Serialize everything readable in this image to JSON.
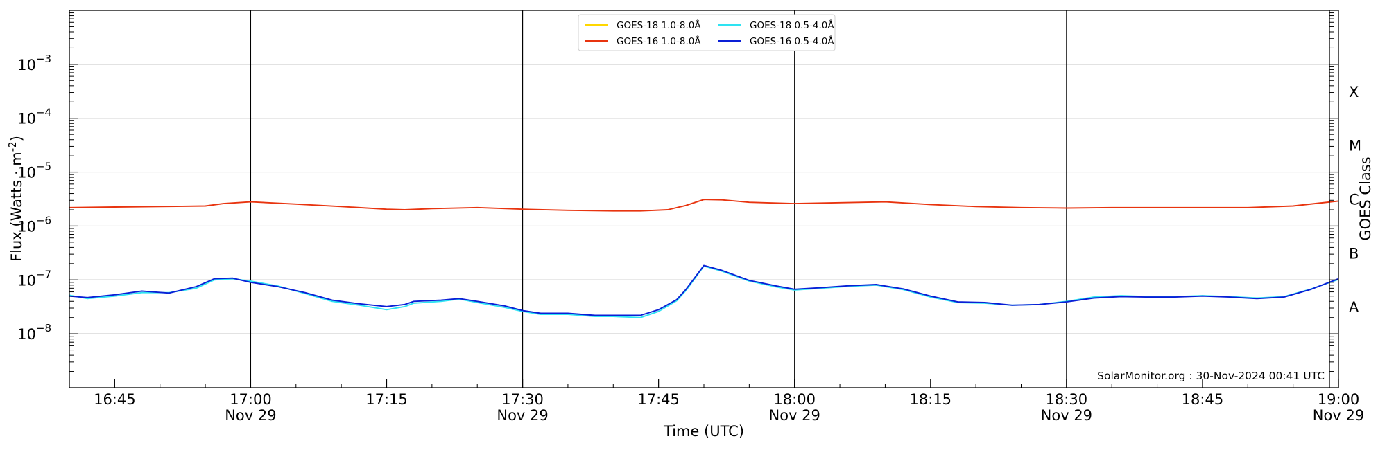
{
  "chart_data": {
    "type": "line",
    "xlabel": "Time (UTC)",
    "ylabel": "Flux (Watts · m",
    "ylabel_sup": "-2",
    "ylabel_close": ")",
    "right_label": "GOES Class",
    "yscale": "log",
    "ylim": [
      1e-09,
      0.01
    ],
    "xlim": [
      "16:40",
      "19:00"
    ],
    "grid": "horizontal at decades",
    "legend_position": "top-center",
    "y_ticks": [
      {
        "value": 0.001,
        "mant": "10",
        "exp": "−3"
      },
      {
        "value": 0.0001,
        "mant": "10",
        "exp": "−4"
      },
      {
        "value": 1e-05,
        "mant": "10",
        "exp": "−5"
      },
      {
        "value": 1e-06,
        "mant": "10",
        "exp": "−6"
      },
      {
        "value": 1e-07,
        "mant": "10",
        "exp": "−7"
      },
      {
        "value": 1e-08,
        "mant": "10",
        "exp": "−8"
      }
    ],
    "x_ticks": [
      {
        "time": "16:45",
        "line1": "16:45",
        "line2": ""
      },
      {
        "time": "17:00",
        "line1": "17:00",
        "line2": "Nov 29"
      },
      {
        "time": "17:15",
        "line1": "17:15",
        "line2": ""
      },
      {
        "time": "17:30",
        "line1": "17:30",
        "line2": "Nov 29"
      },
      {
        "time": "17:45",
        "line1": "17:45",
        "line2": ""
      },
      {
        "time": "18:00",
        "line1": "18:00",
        "line2": "Nov 29"
      },
      {
        "time": "18:15",
        "line1": "18:15",
        "line2": ""
      },
      {
        "time": "18:30",
        "line1": "18:30",
        "line2": "Nov 29"
      },
      {
        "time": "18:45",
        "line1": "18:45",
        "line2": ""
      },
      {
        "time": "19:00",
        "line1": "19:00",
        "line2": "Nov 29"
      }
    ],
    "vertical_lines": [
      "17:00",
      "17:30",
      "18:00",
      "18:30"
    ],
    "goes_classes": [
      {
        "label": "X",
        "flux": 0.0001
      },
      {
        "label": "M",
        "flux": 1e-05
      },
      {
        "label": "C",
        "flux": 1e-06
      },
      {
        "label": "B",
        "flux": 1e-07
      },
      {
        "label": "A",
        "flux": 1e-08
      }
    ],
    "series": [
      {
        "name": "GOES-18 1.0-8.0Å",
        "color": "#ffd700",
        "times": [],
        "values": []
      },
      {
        "name": "GOES-16 1.0-8.0Å",
        "color": "#e8340f",
        "times": [
          "16:40",
          "16:45",
          "16:50",
          "16:55",
          "16:57",
          "17:00",
          "17:05",
          "17:10",
          "17:15",
          "17:17",
          "17:20",
          "17:25",
          "17:30",
          "17:35",
          "17:40",
          "17:43",
          "17:46",
          "17:48",
          "17:50",
          "17:52",
          "17:55",
          "18:00",
          "18:05",
          "18:10",
          "18:15",
          "18:20",
          "18:25",
          "18:30",
          "18:35",
          "18:40",
          "18:45",
          "18:50",
          "18:55",
          "19:00"
        ],
        "values": [
          2.2e-06,
          2.25e-06,
          2.3e-06,
          2.35e-06,
          2.6e-06,
          2.8e-06,
          2.55e-06,
          2.3e-06,
          2.05e-06,
          2e-06,
          2.1e-06,
          2.2e-06,
          2.05e-06,
          1.95e-06,
          1.9e-06,
          1.9e-06,
          2e-06,
          2.4e-06,
          3.1e-06,
          3.05e-06,
          2.75e-06,
          2.6e-06,
          2.7e-06,
          2.8e-06,
          2.5e-06,
          2.3e-06,
          2.2e-06,
          2.15e-06,
          2.2e-06,
          2.2e-06,
          2.2e-06,
          2.2e-06,
          2.35e-06,
          2.9e-06
        ]
      },
      {
        "name": "GOES-18 0.5-4.0Å",
        "color": "#2ee3f2",
        "times": [
          "16:40",
          "16:42",
          "16:45",
          "16:48",
          "16:51",
          "16:54",
          "16:56",
          "16:58",
          "17:00",
          "17:03",
          "17:06",
          "17:09",
          "17:12",
          "17:15",
          "17:17",
          "17:18",
          "17:21",
          "17:23",
          "17:25",
          "17:28",
          "17:30",
          "17:32",
          "17:35",
          "17:38",
          "17:40",
          "17:43",
          "17:45",
          "17:47",
          "17:48",
          "17:50",
          "17:52",
          "17:55",
          "17:58",
          "18:00",
          "18:03",
          "18:06",
          "18:09",
          "18:12",
          "18:15",
          "18:18",
          "18:21",
          "18:24",
          "18:27",
          "18:30",
          "18:33",
          "18:36",
          "18:39",
          "18:42",
          "18:45",
          "18:48",
          "18:51",
          "18:54",
          "18:57",
          "19:00"
        ],
        "values": [
          5.2e-08,
          4.5e-08,
          5e-08,
          5.8e-08,
          5.8e-08,
          7e-08,
          1e-07,
          1.05e-07,
          9.5e-08,
          7.7e-08,
          5.6e-08,
          4e-08,
          3.4e-08,
          2.8e-08,
          3.2e-08,
          3.7e-08,
          4e-08,
          4.4e-08,
          3.8e-08,
          3.1e-08,
          2.6e-08,
          2.3e-08,
          2.3e-08,
          2.1e-08,
          2.1e-08,
          2e-08,
          2.6e-08,
          4.1e-08,
          6.3e-08,
          1.8e-07,
          1.45e-07,
          9.5e-08,
          7.4e-08,
          6.5e-08,
          7e-08,
          7.6e-08,
          8e-08,
          6.6e-08,
          4.8e-08,
          3.8e-08,
          3.7e-08,
          3.4e-08,
          3.5e-08,
          4e-08,
          4.8e-08,
          5.1e-08,
          4.9e-08,
          4.9e-08,
          5.1e-08,
          4.9e-08,
          4.6e-08,
          4.9e-08,
          6.8e-08,
          1.02e-07
        ]
      },
      {
        "name": "GOES-16 0.5-4.0Å",
        "color": "#0a1fd6",
        "times": [
          "16:40",
          "16:42",
          "16:45",
          "16:48",
          "16:51",
          "16:54",
          "16:56",
          "16:58",
          "17:00",
          "17:03",
          "17:06",
          "17:09",
          "17:12",
          "17:15",
          "17:17",
          "17:18",
          "17:21",
          "17:23",
          "17:25",
          "17:28",
          "17:30",
          "17:32",
          "17:35",
          "17:38",
          "17:40",
          "17:43",
          "17:45",
          "17:47",
          "17:48",
          "17:50",
          "17:52",
          "17:55",
          "17:58",
          "18:00",
          "18:03",
          "18:06",
          "18:09",
          "18:12",
          "18:15",
          "18:18",
          "18:21",
          "18:24",
          "18:27",
          "18:30",
          "18:33",
          "18:36",
          "18:39",
          "18:42",
          "18:45",
          "18:48",
          "18:51",
          "18:54",
          "18:57",
          "19:00"
        ],
        "values": [
          5e-08,
          4.7e-08,
          5.3e-08,
          6.2e-08,
          5.7e-08,
          7.5e-08,
          1.05e-07,
          1.08e-07,
          9e-08,
          7.5e-08,
          5.8e-08,
          4.2e-08,
          3.6e-08,
          3.2e-08,
          3.5e-08,
          4e-08,
          4.2e-08,
          4.5e-08,
          4e-08,
          3.3e-08,
          2.7e-08,
          2.4e-08,
          2.4e-08,
          2.2e-08,
          2.2e-08,
          2.2e-08,
          2.8e-08,
          4.3e-08,
          6.6e-08,
          1.85e-07,
          1.5e-07,
          9.8e-08,
          7.7e-08,
          6.7e-08,
          7.2e-08,
          7.8e-08,
          8.2e-08,
          6.8e-08,
          5e-08,
          3.9e-08,
          3.8e-08,
          3.4e-08,
          3.5e-08,
          3.9e-08,
          4.6e-08,
          4.9e-08,
          4.8e-08,
          4.8e-08,
          5e-08,
          4.8e-08,
          4.5e-08,
          4.8e-08,
          6.7e-08,
          1.05e-07
        ]
      }
    ],
    "watermark": "SolarMonitor.org : 30-Nov-2024 00:41 UTC"
  }
}
